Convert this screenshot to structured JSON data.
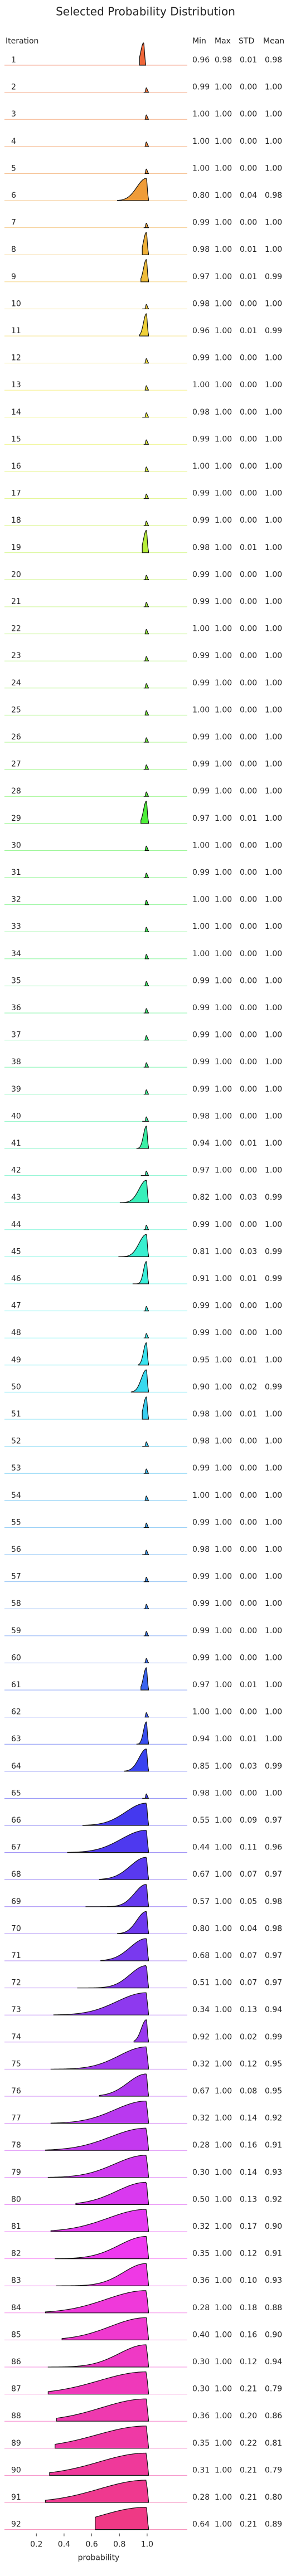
{
  "chart_data": {
    "type": "ridgeline",
    "title": "Selected Probability Distribution",
    "xlabel": "probability",
    "columns": [
      "Iteration",
      "Min",
      "Max",
      "STD",
      "Mean"
    ],
    "xlim": [
      0.05,
      1.25
    ],
    "xticks": [
      0.2,
      0.4,
      0.6,
      0.8,
      {
        "value": 1.0,
        "label": "1.0"
      }
    ],
    "rows": [
      [
        1,
        "0.96",
        "0.98",
        "0.01",
        "0.98"
      ],
      [
        2,
        "0.99",
        "1.00",
        "0.00",
        "1.00"
      ],
      [
        3,
        "1.00",
        "1.00",
        "0.00",
        "1.00"
      ],
      [
        4,
        "1.00",
        "1.00",
        "0.00",
        "1.00"
      ],
      [
        5,
        "1.00",
        "1.00",
        "0.00",
        "1.00"
      ],
      [
        6,
        "0.80",
        "1.00",
        "0.04",
        "0.98"
      ],
      [
        7,
        "0.99",
        "1.00",
        "0.00",
        "1.00"
      ],
      [
        8,
        "0.98",
        "1.00",
        "0.01",
        "1.00"
      ],
      [
        9,
        "0.97",
        "1.00",
        "0.01",
        "0.99"
      ],
      [
        10,
        "0.98",
        "1.00",
        "0.00",
        "1.00"
      ],
      [
        11,
        "0.96",
        "1.00",
        "0.01",
        "0.99"
      ],
      [
        12,
        "0.99",
        "1.00",
        "0.00",
        "1.00"
      ],
      [
        13,
        "1.00",
        "1.00",
        "0.00",
        "1.00"
      ],
      [
        14,
        "0.98",
        "1.00",
        "0.00",
        "1.00"
      ],
      [
        15,
        "0.99",
        "1.00",
        "0.00",
        "1.00"
      ],
      [
        16,
        "1.00",
        "1.00",
        "0.00",
        "1.00"
      ],
      [
        17,
        "0.99",
        "1.00",
        "0.00",
        "1.00"
      ],
      [
        18,
        "0.99",
        "1.00",
        "0.00",
        "1.00"
      ],
      [
        19,
        "0.98",
        "1.00",
        "0.01",
        "1.00"
      ],
      [
        20,
        "0.99",
        "1.00",
        "0.00",
        "1.00"
      ],
      [
        21,
        "0.99",
        "1.00",
        "0.00",
        "1.00"
      ],
      [
        22,
        "1.00",
        "1.00",
        "0.00",
        "1.00"
      ],
      [
        23,
        "0.99",
        "1.00",
        "0.00",
        "1.00"
      ],
      [
        24,
        "0.99",
        "1.00",
        "0.00",
        "1.00"
      ],
      [
        25,
        "1.00",
        "1.00",
        "0.00",
        "1.00"
      ],
      [
        26,
        "0.99",
        "1.00",
        "0.00",
        "1.00"
      ],
      [
        27,
        "0.99",
        "1.00",
        "0.00",
        "1.00"
      ],
      [
        28,
        "0.99",
        "1.00",
        "0.00",
        "1.00"
      ],
      [
        29,
        "0.97",
        "1.00",
        "0.01",
        "1.00"
      ],
      [
        30,
        "1.00",
        "1.00",
        "0.00",
        "1.00"
      ],
      [
        31,
        "0.99",
        "1.00",
        "0.00",
        "1.00"
      ],
      [
        32,
        "1.00",
        "1.00",
        "0.00",
        "1.00"
      ],
      [
        33,
        "1.00",
        "1.00",
        "0.00",
        "1.00"
      ],
      [
        34,
        "1.00",
        "1.00",
        "0.00",
        "1.00"
      ],
      [
        35,
        "0.99",
        "1.00",
        "0.00",
        "1.00"
      ],
      [
        36,
        "0.99",
        "1.00",
        "0.00",
        "1.00"
      ],
      [
        37,
        "0.99",
        "1.00",
        "0.00",
        "1.00"
      ],
      [
        38,
        "0.99",
        "1.00",
        "0.00",
        "1.00"
      ],
      [
        39,
        "0.99",
        "1.00",
        "0.00",
        "1.00"
      ],
      [
        40,
        "0.98",
        "1.00",
        "0.00",
        "1.00"
      ],
      [
        41,
        "0.94",
        "1.00",
        "0.01",
        "1.00"
      ],
      [
        42,
        "0.97",
        "1.00",
        "0.00",
        "1.00"
      ],
      [
        43,
        "0.82",
        "1.00",
        "0.03",
        "0.99"
      ],
      [
        44,
        "0.99",
        "1.00",
        "0.00",
        "1.00"
      ],
      [
        45,
        "0.81",
        "1.00",
        "0.03",
        "0.99"
      ],
      [
        46,
        "0.91",
        "1.00",
        "0.01",
        "0.99"
      ],
      [
        47,
        "0.99",
        "1.00",
        "0.00",
        "1.00"
      ],
      [
        48,
        "0.99",
        "1.00",
        "0.00",
        "1.00"
      ],
      [
        49,
        "0.95",
        "1.00",
        "0.01",
        "1.00"
      ],
      [
        50,
        "0.90",
        "1.00",
        "0.02",
        "0.99"
      ],
      [
        51,
        "0.98",
        "1.00",
        "0.01",
        "1.00"
      ],
      [
        52,
        "0.98",
        "1.00",
        "0.00",
        "1.00"
      ],
      [
        53,
        "0.99",
        "1.00",
        "0.00",
        "1.00"
      ],
      [
        54,
        "1.00",
        "1.00",
        "0.00",
        "1.00"
      ],
      [
        55,
        "0.99",
        "1.00",
        "0.00",
        "1.00"
      ],
      [
        56,
        "0.98",
        "1.00",
        "0.00",
        "1.00"
      ],
      [
        57,
        "0.99",
        "1.00",
        "0.00",
        "1.00"
      ],
      [
        58,
        "0.99",
        "1.00",
        "0.00",
        "1.00"
      ],
      [
        59,
        "0.99",
        "1.00",
        "0.00",
        "1.00"
      ],
      [
        60,
        "0.99",
        "1.00",
        "0.00",
        "1.00"
      ],
      [
        61,
        "0.97",
        "1.00",
        "0.01",
        "1.00"
      ],
      [
        62,
        "1.00",
        "1.00",
        "0.00",
        "1.00"
      ],
      [
        63,
        "0.94",
        "1.00",
        "0.01",
        "1.00"
      ],
      [
        64,
        "0.85",
        "1.00",
        "0.03",
        "0.99"
      ],
      [
        65,
        "0.98",
        "1.00",
        "0.00",
        "1.00"
      ],
      [
        66,
        "0.55",
        "1.00",
        "0.09",
        "0.97"
      ],
      [
        67,
        "0.44",
        "1.00",
        "0.11",
        "0.96"
      ],
      [
        68,
        "0.67",
        "1.00",
        "0.07",
        "0.97"
      ],
      [
        69,
        "0.57",
        "1.00",
        "0.05",
        "0.98"
      ],
      [
        70,
        "0.80",
        "1.00",
        "0.04",
        "0.98"
      ],
      [
        71,
        "0.68",
        "1.00",
        "0.07",
        "0.97"
      ],
      [
        72,
        "0.51",
        "1.00",
        "0.07",
        "0.97"
      ],
      [
        73,
        "0.34",
        "1.00",
        "0.13",
        "0.94"
      ],
      [
        74,
        "0.92",
        "1.00",
        "0.02",
        "0.99"
      ],
      [
        75,
        "0.32",
        "1.00",
        "0.12",
        "0.95"
      ],
      [
        76,
        "0.67",
        "1.00",
        "0.08",
        "0.95"
      ],
      [
        77,
        "0.32",
        "1.00",
        "0.14",
        "0.92"
      ],
      [
        78,
        "0.28",
        "1.00",
        "0.16",
        "0.91"
      ],
      [
        79,
        "0.30",
        "1.00",
        "0.14",
        "0.93"
      ],
      [
        80,
        "0.50",
        "1.00",
        "0.13",
        "0.92"
      ],
      [
        81,
        "0.32",
        "1.00",
        "0.17",
        "0.90"
      ],
      [
        82,
        "0.35",
        "1.00",
        "0.12",
        "0.91"
      ],
      [
        83,
        "0.36",
        "1.00",
        "0.10",
        "0.93"
      ],
      [
        84,
        "0.28",
        "1.00",
        "0.18",
        "0.88"
      ],
      [
        85,
        "0.40",
        "1.00",
        "0.16",
        "0.90"
      ],
      [
        86,
        "0.30",
        "1.00",
        "0.12",
        "0.94"
      ],
      [
        87,
        "0.30",
        "1.00",
        "0.21",
        "0.79"
      ],
      [
        88,
        "0.36",
        "1.00",
        "0.20",
        "0.86"
      ],
      [
        89,
        "0.35",
        "1.00",
        "0.22",
        "0.81"
      ],
      [
        90,
        "0.31",
        "1.00",
        "0.21",
        "0.79"
      ],
      [
        91,
        "0.28",
        "1.00",
        "0.21",
        "0.80"
      ],
      [
        92,
        "0.64",
        "1.00",
        "0.21",
        "0.89"
      ]
    ]
  }
}
